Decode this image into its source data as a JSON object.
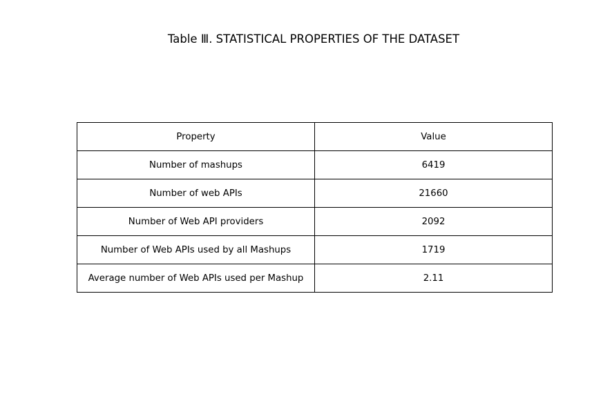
{
  "chart_data": {
    "type": "table",
    "title": "Table Ⅲ.  STATISTICAL PROPERTIES OF THE DATASET",
    "columns": [
      "Property",
      "Value"
    ],
    "rows": [
      [
        "Number of mashups",
        "6419"
      ],
      [
        "Number of web APIs",
        "21660"
      ],
      [
        "Number of Web API providers",
        "2092"
      ],
      [
        "Number of Web APIs used by all Mashups",
        "1719"
      ],
      [
        "Average number of Web APIs used per Mashup",
        "2.11"
      ]
    ]
  }
}
